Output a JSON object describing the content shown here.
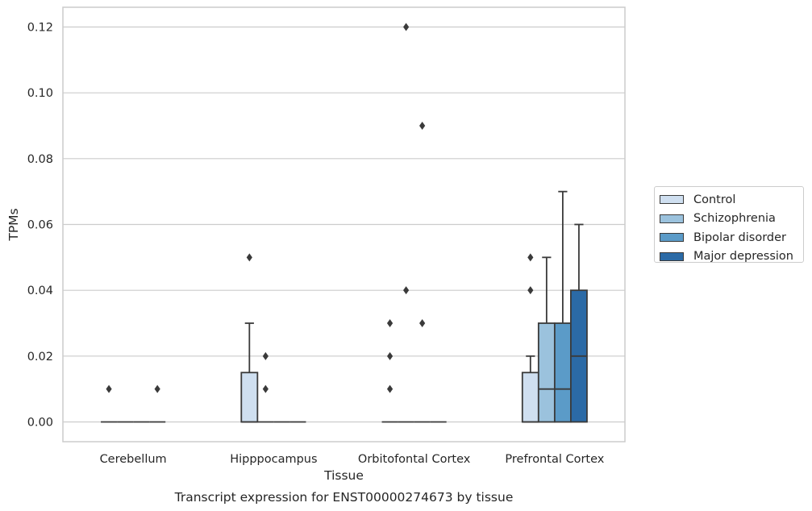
{
  "chart_data": {
    "type": "box",
    "title": "Transcript expression for ENST00000274673 by tissue",
    "xlabel": "Tissue",
    "ylabel": "TPMs",
    "ylim": [
      -0.006,
      0.126
    ],
    "yticks": [
      0.0,
      0.02,
      0.04,
      0.06,
      0.08,
      0.1,
      0.12
    ],
    "ytick_labels": [
      "0.00",
      "0.02",
      "0.04",
      "0.06",
      "0.08",
      "0.10",
      "0.12"
    ],
    "grid": true,
    "legend_position": "right",
    "categories": [
      "Cerebellum",
      "Hipppocampus",
      "Orbitofontal Cortex",
      "Prefrontal Cortex"
    ],
    "series": [
      {
        "name": "Control",
        "color": "#cfdff0",
        "boxes": [
          {
            "q1": 0.0,
            "median": 0.0,
            "q3": 0.0,
            "whisker_low": 0.0,
            "whisker_high": 0.0,
            "outliers": [
              0.01
            ]
          },
          {
            "q1": 0.0,
            "median": 0.0,
            "q3": 0.015,
            "whisker_low": 0.0,
            "whisker_high": 0.03,
            "outliers": [
              0.05
            ]
          },
          {
            "q1": 0.0,
            "median": 0.0,
            "q3": 0.0,
            "whisker_low": 0.0,
            "whisker_high": 0.0,
            "outliers": [
              0.01,
              0.02,
              0.03
            ]
          },
          {
            "q1": 0.0,
            "median": 0.0,
            "q3": 0.015,
            "whisker_low": 0.0,
            "whisker_high": 0.02,
            "outliers": [
              0.04,
              0.05
            ]
          }
        ]
      },
      {
        "name": "Schizophrenia",
        "color": "#9bc2dd",
        "boxes": [
          {
            "q1": 0.0,
            "median": 0.0,
            "q3": 0.0,
            "whisker_low": 0.0,
            "whisker_high": 0.0,
            "outliers": []
          },
          {
            "q1": 0.0,
            "median": 0.0,
            "q3": 0.0,
            "whisker_low": 0.0,
            "whisker_high": 0.0,
            "outliers": [
              0.01,
              0.02
            ]
          },
          {
            "q1": 0.0,
            "median": 0.0,
            "q3": 0.0,
            "whisker_low": 0.0,
            "whisker_high": 0.0,
            "outliers": [
              0.04,
              0.12
            ]
          },
          {
            "q1": 0.0,
            "median": 0.01,
            "q3": 0.03,
            "whisker_low": 0.0,
            "whisker_high": 0.05,
            "outliers": []
          }
        ]
      },
      {
        "name": "Bipolar disorder",
        "color": "#5b9bc8",
        "boxes": [
          {
            "q1": 0.0,
            "median": 0.0,
            "q3": 0.0,
            "whisker_low": 0.0,
            "whisker_high": 0.0,
            "outliers": []
          },
          {
            "q1": 0.0,
            "median": 0.0,
            "q3": 0.0,
            "whisker_low": 0.0,
            "whisker_high": 0.0,
            "outliers": []
          },
          {
            "q1": 0.0,
            "median": 0.0,
            "q3": 0.0,
            "whisker_low": 0.0,
            "whisker_high": 0.0,
            "outliers": [
              0.03,
              0.09
            ]
          },
          {
            "q1": 0.0,
            "median": 0.01,
            "q3": 0.03,
            "whisker_low": 0.0,
            "whisker_high": 0.07,
            "outliers": []
          }
        ]
      },
      {
        "name": "Major depression",
        "color": "#2b6aa6",
        "boxes": [
          {
            "q1": 0.0,
            "median": 0.0,
            "q3": 0.0,
            "whisker_low": 0.0,
            "whisker_high": 0.0,
            "outliers": [
              0.01
            ]
          },
          {
            "q1": 0.0,
            "median": 0.0,
            "q3": 0.0,
            "whisker_low": 0.0,
            "whisker_high": 0.0,
            "outliers": []
          },
          {
            "q1": 0.0,
            "median": 0.0,
            "q3": 0.0,
            "whisker_low": 0.0,
            "whisker_high": 0.0,
            "outliers": []
          },
          {
            "q1": 0.0,
            "median": 0.02,
            "q3": 0.04,
            "whisker_low": 0.0,
            "whisker_high": 0.06,
            "outliers": []
          }
        ]
      }
    ]
  }
}
